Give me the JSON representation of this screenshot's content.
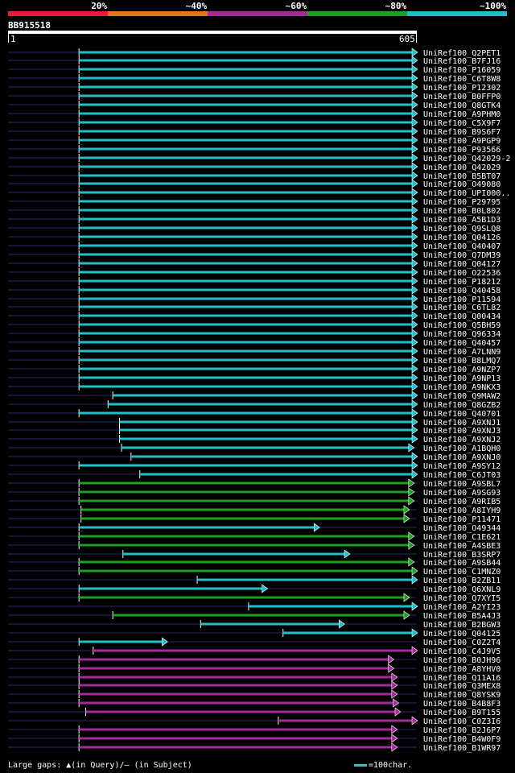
{
  "colors": {
    "c20": "#e81b3b",
    "c40": "#e8751a",
    "c60": "#a52a9c",
    "c80": "#1fa01f",
    "c100": "#1fbfc9",
    "gap": "#22225a"
  },
  "identity_legend": [
    {
      "label": "20%",
      "color": "#e81b3b"
    },
    {
      "label": "~40%",
      "color": "#e8751a"
    },
    {
      "label": "~60%",
      "color": "#a52a9c"
    },
    {
      "label": "~80%",
      "color": "#1fa01f"
    },
    {
      "label": "~100%",
      "color": "#1fbfc9"
    }
  ],
  "query": {
    "id": "BB915518",
    "start_label": "1",
    "end_label": "605"
  },
  "footer": {
    "gaps": "Large gaps: ▲(in Query)/— (in Subject)",
    "scale": "=100char."
  },
  "chart_data": {
    "type": "alignment",
    "query_length": 605,
    "hits": [
      {
        "name": "UniRef100_Q2PET1",
        "start": 105,
        "end": 605,
        "cls": "c100"
      },
      {
        "name": "UniRef100_B7FJ16",
        "start": 105,
        "end": 605,
        "cls": "c100"
      },
      {
        "name": "UniRef100_P16059",
        "start": 105,
        "end": 605,
        "cls": "c100"
      },
      {
        "name": "UniRef100_C6T8W8",
        "start": 105,
        "end": 605,
        "cls": "c100"
      },
      {
        "name": "UniRef100_P12302",
        "start": 105,
        "end": 605,
        "cls": "c100"
      },
      {
        "name": "UniRef100_B0FFP0",
        "start": 105,
        "end": 605,
        "cls": "c100"
      },
      {
        "name": "UniRef100_Q8GTK4",
        "start": 105,
        "end": 605,
        "cls": "c100"
      },
      {
        "name": "UniRef100_A9PHM0",
        "start": 105,
        "end": 605,
        "cls": "c100"
      },
      {
        "name": "UniRef100_C5X9F7",
        "start": 105,
        "end": 605,
        "cls": "c100"
      },
      {
        "name": "UniRef100_B9S6F7",
        "start": 105,
        "end": 605,
        "cls": "c100"
      },
      {
        "name": "UniRef100_A9PGP9",
        "start": 105,
        "end": 605,
        "cls": "c100"
      },
      {
        "name": "UniRef100_P93566",
        "start": 105,
        "end": 605,
        "cls": "c100"
      },
      {
        "name": "UniRef100_Q42029-2",
        "start": 105,
        "end": 605,
        "cls": "c100"
      },
      {
        "name": "UniRef100_Q42029",
        "start": 105,
        "end": 605,
        "cls": "c100"
      },
      {
        "name": "UniRef100_B5BT07",
        "start": 105,
        "end": 605,
        "cls": "c100"
      },
      {
        "name": "UniRef100_O49080",
        "start": 105,
        "end": 605,
        "cls": "c100"
      },
      {
        "name": "UniRef100_UPI000..",
        "start": 105,
        "end": 605,
        "cls": "c100"
      },
      {
        "name": "UniRef100_P29795",
        "start": 105,
        "end": 605,
        "cls": "c100"
      },
      {
        "name": "UniRef100_B0L802",
        "start": 105,
        "end": 605,
        "cls": "c100"
      },
      {
        "name": "UniRef100_A5B1D3",
        "start": 105,
        "end": 605,
        "cls": "c100"
      },
      {
        "name": "UniRef100_Q9SLQ8",
        "start": 105,
        "end": 605,
        "cls": "c100"
      },
      {
        "name": "UniRef100_Q04126",
        "start": 105,
        "end": 605,
        "cls": "c100"
      },
      {
        "name": "UniRef100_Q40407",
        "start": 105,
        "end": 605,
        "cls": "c100"
      },
      {
        "name": "UniRef100_Q7DM39",
        "start": 105,
        "end": 605,
        "cls": "c100"
      },
      {
        "name": "UniRef100_Q04127",
        "start": 105,
        "end": 605,
        "cls": "c100"
      },
      {
        "name": "UniRef100_O22536",
        "start": 105,
        "end": 605,
        "cls": "c100"
      },
      {
        "name": "UniRef100_P18212",
        "start": 105,
        "end": 605,
        "cls": "c100"
      },
      {
        "name": "UniRef100_Q40458",
        "start": 105,
        "end": 605,
        "cls": "c100"
      },
      {
        "name": "UniRef100_P11594",
        "start": 105,
        "end": 605,
        "cls": "c100"
      },
      {
        "name": "UniRef100_C6TL82",
        "start": 105,
        "end": 605,
        "cls": "c100"
      },
      {
        "name": "UniRef100_Q00434",
        "start": 105,
        "end": 605,
        "cls": "c100"
      },
      {
        "name": "UniRef100_Q5BH59",
        "start": 105,
        "end": 605,
        "cls": "c100"
      },
      {
        "name": "UniRef100_Q96334",
        "start": 105,
        "end": 605,
        "cls": "c100"
      },
      {
        "name": "UniRef100_Q40457",
        "start": 105,
        "end": 605,
        "cls": "c100"
      },
      {
        "name": "UniRef100_A7LNN9",
        "start": 105,
        "end": 605,
        "cls": "c100"
      },
      {
        "name": "UniRef100_B8LMQ7",
        "start": 105,
        "end": 605,
        "cls": "c100"
      },
      {
        "name": "UniRef100_A9NZP7",
        "start": 105,
        "end": 605,
        "cls": "c100"
      },
      {
        "name": "UniRef100_A9NP13",
        "start": 105,
        "end": 605,
        "cls": "c100"
      },
      {
        "name": "UniRef100_A9NKX3",
        "start": 105,
        "end": 605,
        "cls": "c100"
      },
      {
        "name": "UniRef100_Q9MAW2",
        "start": 155,
        "end": 605,
        "cls": "c100"
      },
      {
        "name": "UniRef100_Q8GZB2",
        "start": 148,
        "end": 605,
        "cls": "c100"
      },
      {
        "name": "UniRef100_Q40701",
        "start": 105,
        "end": 605,
        "cls": "c100"
      },
      {
        "name": "UniRef100_A9XNJ1",
        "start": 165,
        "end": 605,
        "cls": "c100"
      },
      {
        "name": "UniRef100_A9XNJ3",
        "start": 165,
        "end": 605,
        "cls": "c100"
      },
      {
        "name": "UniRef100_A9XNJ2",
        "start": 165,
        "end": 605,
        "cls": "c100"
      },
      {
        "name": "UniRef100_A1BQH0",
        "start": 168,
        "end": 600,
        "cls": "c100"
      },
      {
        "name": "UniRef100_A9XNJ0",
        "start": 182,
        "end": 605,
        "cls": "c100"
      },
      {
        "name": "UniRef100_A9SY12",
        "start": 105,
        "end": 605,
        "cls": "c100"
      },
      {
        "name": "UniRef100_C6JT03",
        "start": 195,
        "end": 605,
        "cls": "c100"
      },
      {
        "name": "UniRef100_A9SBL7",
        "start": 105,
        "end": 600,
        "cls": "c80"
      },
      {
        "name": "UniRef100_A9SG93",
        "start": 105,
        "end": 600,
        "cls": "c80"
      },
      {
        "name": "UniRef100_A9RIB5",
        "start": 105,
        "end": 600,
        "cls": "c80"
      },
      {
        "name": "UniRef100_A8IYH9",
        "start": 108,
        "end": 593,
        "cls": "c80"
      },
      {
        "name": "UniRef100_P11471",
        "start": 108,
        "end": 593,
        "cls": "c80"
      },
      {
        "name": "UniRef100_O49344",
        "start": 105,
        "end": 460,
        "cls": "c100"
      },
      {
        "name": "UniRef100_C1E621",
        "start": 105,
        "end": 600,
        "cls": "c80"
      },
      {
        "name": "UniRef100_A4SBE3",
        "start": 105,
        "end": 600,
        "cls": "c80"
      },
      {
        "name": "UniRef100_B3SRP7",
        "start": 170,
        "end": 505,
        "cls": "c100"
      },
      {
        "name": "UniRef100_A9SB44",
        "start": 105,
        "end": 600,
        "cls": "c80"
      },
      {
        "name": "UniRef100_C1MNZ0",
        "start": 105,
        "end": 605,
        "cls": "c80"
      },
      {
        "name": "UniRef100_B2ZB11",
        "start": 280,
        "end": 605,
        "cls": "c100"
      },
      {
        "name": "UniRef100_Q6XNL9",
        "start": 105,
        "end": 383,
        "cls": "c100"
      },
      {
        "name": "UniRef100_Q7XYI5",
        "start": 105,
        "end": 593,
        "cls": "c80"
      },
      {
        "name": "UniRef100_A2YI23",
        "start": 356,
        "end": 605,
        "cls": "c100"
      },
      {
        "name": "UniRef100_B5A4J3",
        "start": 155,
        "end": 593,
        "cls": "c80"
      },
      {
        "name": "UniRef100_B2BGW3",
        "start": 285,
        "end": 497,
        "cls": "c100"
      },
      {
        "name": "UniRef100_Q04125",
        "start": 407,
        "end": 605,
        "cls": "c100"
      },
      {
        "name": "UniRef100_C0Z2T4",
        "start": 105,
        "end": 235,
        "cls": "c100"
      },
      {
        "name": "UniRef100_C4J9V5",
        "start": 126,
        "end": 605,
        "cls": "c60"
      },
      {
        "name": "UniRef100_B0JH96",
        "start": 105,
        "end": 570,
        "cls": "c60"
      },
      {
        "name": "UniRef100_A8YHV0",
        "start": 105,
        "end": 570,
        "cls": "c60"
      },
      {
        "name": "UniRef100_Q11A16",
        "start": 105,
        "end": 575,
        "cls": "c60"
      },
      {
        "name": "UniRef100_Q3MEX8",
        "start": 105,
        "end": 575,
        "cls": "c60"
      },
      {
        "name": "UniRef100_Q8YSK9",
        "start": 105,
        "end": 575,
        "cls": "c60"
      },
      {
        "name": "UniRef100_B4B8F3",
        "start": 105,
        "end": 577,
        "cls": "c60"
      },
      {
        "name": "UniRef100_B9T155",
        "start": 115,
        "end": 580,
        "cls": "c60"
      },
      {
        "name": "UniRef100_C0Z3I6",
        "start": 400,
        "end": 605,
        "cls": "c60"
      },
      {
        "name": "UniRef100_B2J6P7",
        "start": 105,
        "end": 575,
        "cls": "c60"
      },
      {
        "name": "UniRef100_B4W0F9",
        "start": 105,
        "end": 575,
        "cls": "c60"
      },
      {
        "name": "UniRef100_B1WR97",
        "start": 105,
        "end": 575,
        "cls": "c60"
      }
    ]
  }
}
